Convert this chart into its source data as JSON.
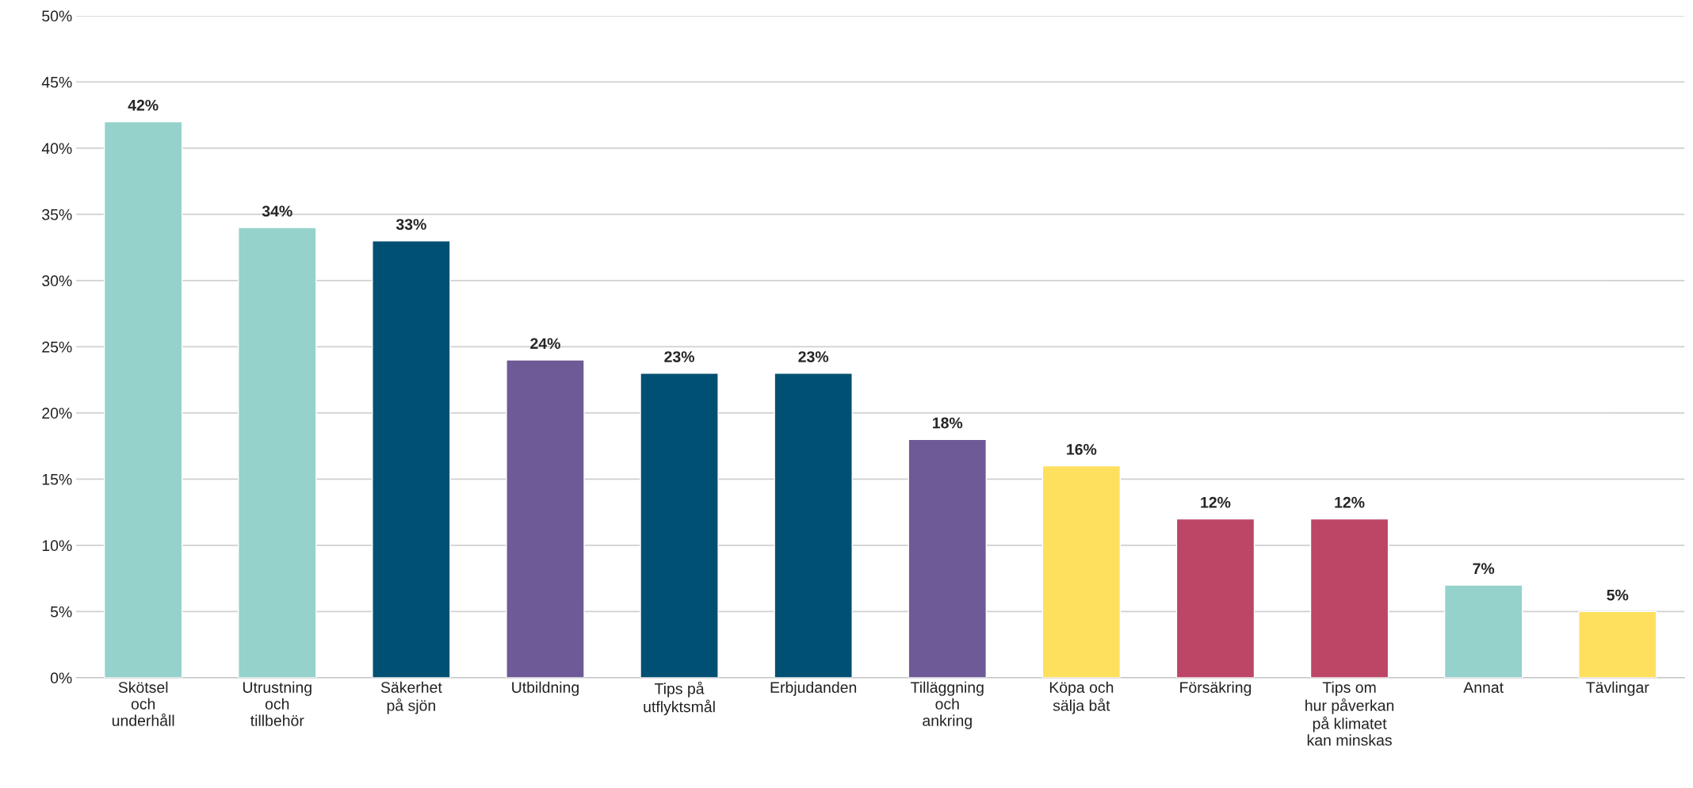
{
  "chart_data": {
    "type": "bar",
    "categories": [
      "Skötsel\noch\nunderhåll",
      "Utrustning\noch\ntillbehör",
      "Säkerhet\npå sjön",
      "Utbildning",
      "Tips på\nutflyktsmål",
      "Erbjudanden",
      "Tilläggning\noch\nankring",
      "Köpa och\nsälja båt",
      "Försäkring",
      "Tips om\nhur påverkan\npå klimatet\nkan minskas",
      "Annat",
      "Tävlingar"
    ],
    "values": [
      42,
      34,
      33,
      24,
      23,
      23,
      18,
      16,
      12,
      12,
      7,
      5
    ],
    "colors": [
      "#94d2cb",
      "#94d2cb",
      "#005073",
      "#6e5a96",
      "#005073",
      "#005073",
      "#6e5a96",
      "#ffe05e",
      "#bd4566",
      "#bd4566",
      "#94d2cb",
      "#ffe05e"
    ],
    "value_labels": [
      "42%",
      "34%",
      "33%",
      "24%",
      "23%",
      "23%",
      "18%",
      "16%",
      "12%",
      "12%",
      "7%",
      "5%"
    ],
    "ylim": [
      0,
      50
    ],
    "yticks": [
      {
        "value": 0,
        "label": "0%"
      },
      {
        "value": 5,
        "label": "5%"
      },
      {
        "value": 10,
        "label": "10%"
      },
      {
        "value": 15,
        "label": "15%"
      },
      {
        "value": 20,
        "label": "20%"
      },
      {
        "value": 25,
        "label": "25%"
      },
      {
        "value": 30,
        "label": "30%"
      },
      {
        "value": 35,
        "label": "35%"
      },
      {
        "value": 40,
        "label": "40%"
      },
      {
        "value": 45,
        "label": "45%"
      },
      {
        "value": 50,
        "label": "50%"
      }
    ],
    "grid": "y"
  }
}
